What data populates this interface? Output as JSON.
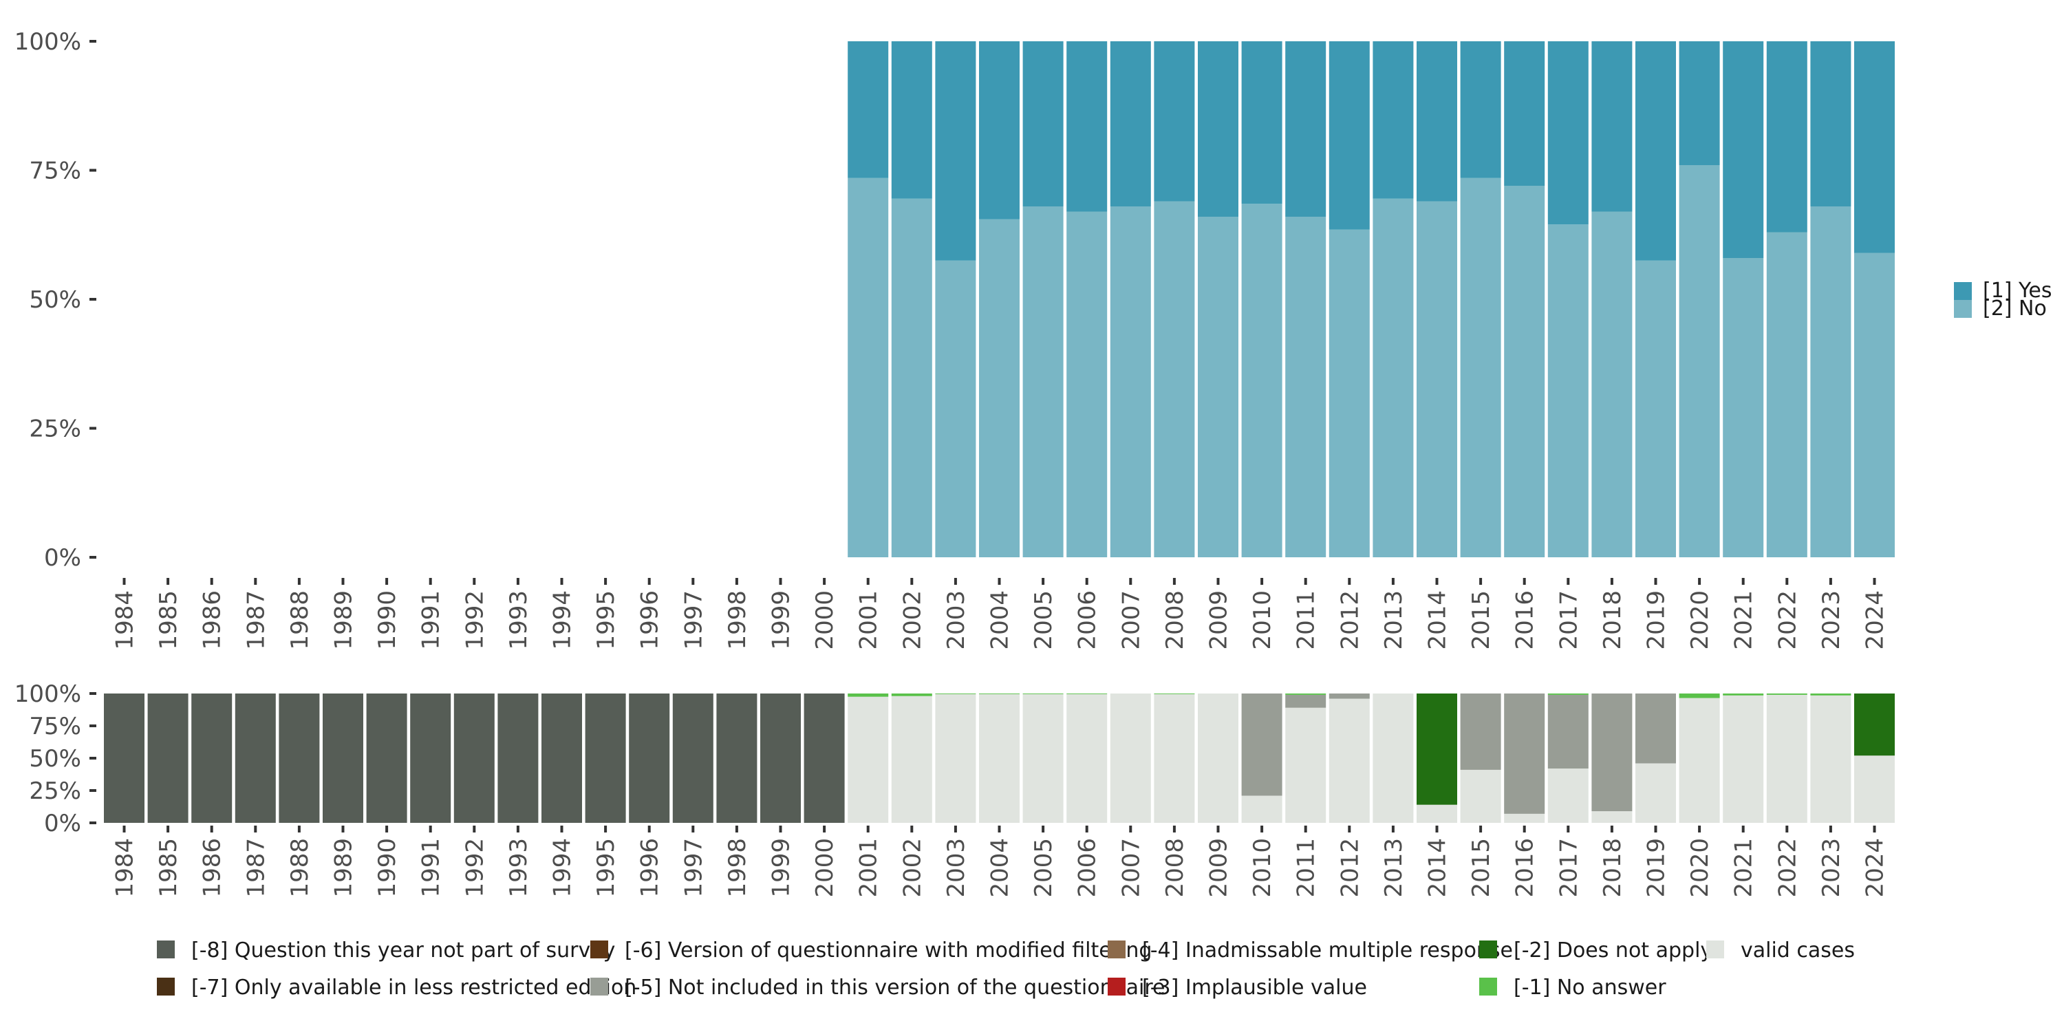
{
  "chart_data": [
    {
      "type": "bar",
      "stacked": true,
      "title": "",
      "xlabel": "",
      "ylabel": "",
      "ylim": [
        0,
        100
      ],
      "y_ticks": [
        "0%",
        "25%",
        "50%",
        "75%",
        "100%"
      ],
      "categories": [
        "1984",
        "1985",
        "1986",
        "1987",
        "1988",
        "1989",
        "1990",
        "1991",
        "1992",
        "1993",
        "1994",
        "1995",
        "1996",
        "1997",
        "1998",
        "1999",
        "2000",
        "2001",
        "2002",
        "2003",
        "2004",
        "2005",
        "2006",
        "2007",
        "2008",
        "2009",
        "2010",
        "2011",
        "2012",
        "2013",
        "2014",
        "2015",
        "2016",
        "2017",
        "2018",
        "2019",
        "2020",
        "2021",
        "2022",
        "2023",
        "2024"
      ],
      "legend_position": "right",
      "series": [
        {
          "name": "[2] No",
          "color": "#79b6c5",
          "values": [
            null,
            null,
            null,
            null,
            null,
            null,
            null,
            null,
            null,
            null,
            null,
            null,
            null,
            null,
            null,
            null,
            null,
            73.5,
            69.5,
            57.5,
            65.5,
            68,
            67,
            68,
            69,
            66,
            68.5,
            66,
            63.5,
            69.5,
            69,
            73.5,
            72,
            64.5,
            67,
            57.5,
            76,
            58,
            63,
            68,
            59
          ]
        },
        {
          "name": "[1] Yes",
          "color": "#3d99b3",
          "values": [
            null,
            null,
            null,
            null,
            null,
            null,
            null,
            null,
            null,
            null,
            null,
            null,
            null,
            null,
            null,
            null,
            null,
            26.5,
            30.5,
            42.5,
            34.5,
            32,
            33,
            32,
            31,
            34,
            31.5,
            34,
            36.5,
            30.5,
            31,
            26.5,
            28,
            35.5,
            33,
            42.5,
            24,
            42,
            37,
            32,
            41
          ]
        }
      ]
    },
    {
      "type": "bar",
      "stacked": true,
      "title": "",
      "xlabel": "",
      "ylabel": "",
      "ylim": [
        0,
        100
      ],
      "y_ticks": [
        "0%",
        "25%",
        "50%",
        "75%",
        "100%"
      ],
      "categories": [
        "1984",
        "1985",
        "1986",
        "1987",
        "1988",
        "1989",
        "1990",
        "1991",
        "1992",
        "1993",
        "1994",
        "1995",
        "1996",
        "1997",
        "1998",
        "1999",
        "2000",
        "2001",
        "2002",
        "2003",
        "2004",
        "2005",
        "2006",
        "2007",
        "2008",
        "2009",
        "2010",
        "2011",
        "2012",
        "2013",
        "2014",
        "2015",
        "2016",
        "2017",
        "2018",
        "2019",
        "2020",
        "2021",
        "2022",
        "2023",
        "2024"
      ],
      "legend_position": "bottom",
      "series": [
        {
          "name": "valid cases",
          "color": "#e0e4df",
          "values": [
            0,
            0,
            0,
            0,
            0,
            0,
            0,
            0,
            0,
            0,
            0,
            0,
            0,
            0,
            0,
            0,
            0,
            97.5,
            98,
            99.5,
            99.5,
            99.5,
            99.5,
            100,
            99.5,
            100,
            21,
            89,
            96,
            100,
            14,
            41,
            7,
            42,
            9,
            46,
            96.5,
            98.5,
            99,
            98.5,
            52
          ]
        },
        {
          "name": "[-5] Not included in this version of the questionnaire",
          "color": "#989d95",
          "values": [
            0,
            0,
            0,
            0,
            0,
            0,
            0,
            0,
            0,
            0,
            0,
            0,
            0,
            0,
            0,
            0,
            0,
            0,
            0,
            0,
            0,
            0,
            0,
            0,
            0,
            0,
            79,
            10,
            4,
            0,
            0,
            59,
            93,
            57,
            91,
            54,
            0,
            0,
            0,
            0,
            0
          ]
        },
        {
          "name": "[-2] Does not apply",
          "color": "#226f12",
          "values": [
            0,
            0,
            0,
            0,
            0,
            0,
            0,
            0,
            0,
            0,
            0,
            0,
            0,
            0,
            0,
            0,
            0,
            0,
            0,
            0,
            0,
            0,
            0,
            0,
            0,
            0,
            0,
            0,
            0,
            0,
            86,
            0,
            0,
            0,
            0,
            0,
            0,
            0,
            0,
            0,
            48
          ]
        },
        {
          "name": "[-1] No answer",
          "color": "#5ac14a",
          "values": [
            0,
            0,
            0,
            0,
            0,
            0,
            0,
            0,
            0,
            0,
            0,
            0,
            0,
            0,
            0,
            0,
            0,
            2.5,
            2,
            0.5,
            0.5,
            0.5,
            0.5,
            0,
            0.5,
            0,
            0,
            1,
            0,
            0,
            0,
            0,
            0,
            1,
            0,
            0,
            3.5,
            1.5,
            1,
            1.5,
            0
          ]
        },
        {
          "name": "[-8] Question this year not part of survey",
          "color": "#565d56",
          "values": [
            100,
            100,
            100,
            100,
            100,
            100,
            100,
            100,
            100,
            100,
            100,
            100,
            100,
            100,
            100,
            100,
            100,
            0,
            0,
            0,
            0,
            0,
            0,
            0,
            0,
            0,
            0,
            0,
            0,
            0,
            0,
            0,
            0,
            0,
            0,
            0,
            0,
            0,
            0,
            0,
            0
          ]
        }
      ]
    }
  ],
  "legend_top": [
    {
      "label": "[1] Yes",
      "color": "#3d99b3"
    },
    {
      "label": "[2] No",
      "color": "#79b6c5"
    }
  ],
  "legend_bottom": [
    {
      "label": "[-8] Question this year not part of survey",
      "color": "#565d56"
    },
    {
      "label": "[-7] Only available in less restricted edition",
      "color": "#4a3015"
    },
    {
      "label": "[-6] Version of questionnaire with modified filtering",
      "color": "#5e3614"
    },
    {
      "label": "[-5] Not included in this version of the questionnaire",
      "color": "#989d95"
    },
    {
      "label": "[-4] Inadmissable multiple response",
      "color": "#8c6a4a"
    },
    {
      "label": "[-3] Implausible value",
      "color": "#b51e1e"
    },
    {
      "label": "[-2] Does not apply",
      "color": "#226f12"
    },
    {
      "label": "[-1] No answer",
      "color": "#5ac14a"
    },
    {
      "label": "valid cases",
      "color": "#e0e4df"
    }
  ]
}
